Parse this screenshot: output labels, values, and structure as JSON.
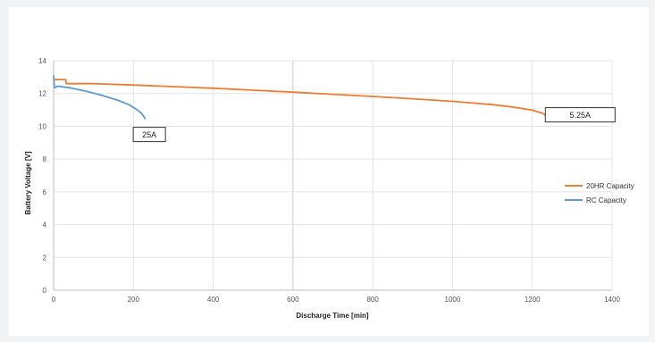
{
  "chart_data": {
    "type": "line",
    "title": "",
    "xlabel": "Discharge Time [min]",
    "ylabel": "Battery Voltage [V]",
    "xlim": [
      0,
      1400
    ],
    "ylim": [
      0,
      14
    ],
    "x_ticks": [
      0,
      200,
      400,
      600,
      800,
      1000,
      1200,
      1400
    ],
    "y_ticks": [
      0,
      2,
      4,
      6,
      8,
      10,
      12,
      14
    ],
    "grid": true,
    "legend_position": "right",
    "series": [
      {
        "name": "20HR Capacity",
        "color": "#ed7d31",
        "points": [
          [
            0,
            12.85
          ],
          [
            30,
            12.85
          ],
          [
            32,
            12.6
          ],
          [
            100,
            12.6
          ],
          [
            200,
            12.52
          ],
          [
            300,
            12.42
          ],
          [
            400,
            12.32
          ],
          [
            500,
            12.2
          ],
          [
            600,
            12.08
          ],
          [
            700,
            11.95
          ],
          [
            800,
            11.82
          ],
          [
            900,
            11.68
          ],
          [
            1000,
            11.52
          ],
          [
            1100,
            11.32
          ],
          [
            1150,
            11.18
          ],
          [
            1200,
            10.98
          ],
          [
            1225,
            10.8
          ],
          [
            1245,
            10.5
          ]
        ]
      },
      {
        "name": "RC Capacity",
        "color": "#5b9bd5",
        "points": [
          [
            0,
            13.1
          ],
          [
            2,
            12.35
          ],
          [
            10,
            12.45
          ],
          [
            40,
            12.35
          ],
          [
            80,
            12.15
          ],
          [
            120,
            11.9
          ],
          [
            160,
            11.6
          ],
          [
            190,
            11.3
          ],
          [
            210,
            11.0
          ],
          [
            222,
            10.75
          ],
          [
            230,
            10.45
          ]
        ]
      }
    ],
    "annotations": [
      {
        "text": "25A",
        "x": 240,
        "y": 9.5
      },
      {
        "text": "5.25A",
        "x": 1320,
        "y": 10.7
      }
    ]
  }
}
